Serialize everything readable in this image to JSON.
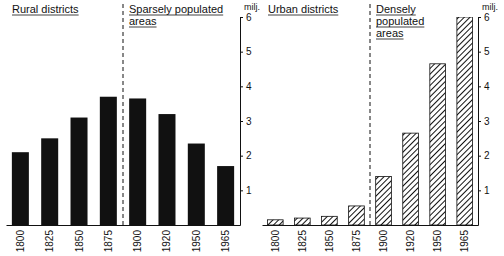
{
  "chart_data": [
    {
      "type": "bar",
      "categories": [
        "1800",
        "1825",
        "1850",
        "1875",
        "1900",
        "1920",
        "1950",
        "1965"
      ],
      "values": [
        2.1,
        2.5,
        3.1,
        3.7,
        3.65,
        3.2,
        2.35,
        1.7
      ],
      "color": "#111111",
      "y_label": "milj.",
      "annotations": [
        {
          "text": [
            "Rural districts"
          ]
        },
        {
          "text": [
            "Sparsely populated",
            "areas"
          ]
        }
      ],
      "ylim": [
        0,
        6
      ],
      "yticks": [
        1,
        2,
        3,
        4,
        5,
        6
      ],
      "grid": false
    },
    {
      "type": "bar",
      "categories": [
        "1800",
        "1825",
        "1850",
        "1875",
        "1900",
        "1920",
        "1950",
        "1965"
      ],
      "values": [
        0.15,
        0.2,
        0.25,
        0.55,
        1.4,
        2.65,
        4.65,
        6.0
      ],
      "color": "#111111",
      "y_label": "milj.",
      "annotations": [
        {
          "text": [
            "Urban districts"
          ]
        },
        {
          "text": [
            "Densely",
            "populated",
            "areas"
          ]
        }
      ],
      "ylim": [
        0,
        6
      ],
      "yticks": [
        1,
        2,
        3,
        4,
        5,
        6
      ],
      "grid": false
    }
  ]
}
